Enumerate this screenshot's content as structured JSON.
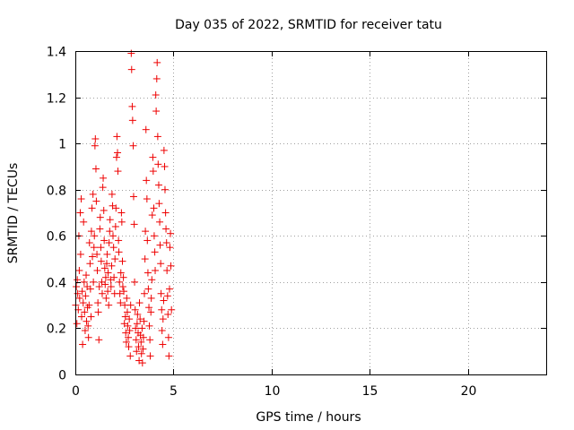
{
  "chart_data": {
    "type": "scatter",
    "title": "Day 035 of 2022, SRMTID for receiver tatu",
    "xlabel": "GPS time / hours",
    "ylabel": "SRMTID / TECUs",
    "xlim": [
      0,
      24
    ],
    "ylim": [
      0,
      1.4
    ],
    "xticks": [
      0,
      5,
      10,
      15,
      20
    ],
    "yticks": [
      0,
      0.2,
      0.4,
      0.6,
      0.8,
      1,
      1.2,
      1.4
    ],
    "xtick_labels": [
      "0",
      "5",
      "10",
      "15",
      "20"
    ],
    "ytick_labels": [
      "0",
      "0.2",
      "0.4",
      "0.6",
      "0.8",
      "1",
      "1.2",
      "1.4"
    ],
    "grid": true,
    "marker": "plus",
    "series": [
      {
        "name": "SRMTID",
        "color": "#ee0000",
        "points": [
          [
            0.02,
            0.3
          ],
          [
            0.05,
            0.38
          ],
          [
            0.08,
            0.22
          ],
          [
            0.1,
            0.41
          ],
          [
            0.12,
            0.35
          ],
          [
            0.15,
            0.28
          ],
          [
            0.18,
            0.6
          ],
          [
            0.2,
            0.45
          ],
          [
            0.22,
            0.33
          ],
          [
            0.25,
            0.7
          ],
          [
            0.27,
            0.52
          ],
          [
            0.3,
            0.76
          ],
          [
            0.32,
            0.25
          ],
          [
            0.35,
            0.36
          ],
          [
            0.37,
            0.13
          ],
          [
            0.4,
            0.31
          ],
          [
            0.42,
            0.66
          ],
          [
            0.45,
            0.4
          ],
          [
            0.47,
            0.27
          ],
          [
            0.5,
            0.19
          ],
          [
            0.52,
            0.34
          ],
          [
            0.55,
            0.43
          ],
          [
            0.57,
            0.23
          ],
          [
            0.6,
            0.38
          ],
          [
            0.62,
            0.29
          ],
          [
            0.65,
            0.21
          ],
          [
            0.67,
            0.16
          ],
          [
            0.7,
            0.3
          ],
          [
            0.72,
            0.57
          ],
          [
            0.75,
            0.48
          ],
          [
            0.77,
            0.37
          ],
          [
            0.8,
            0.25
          ],
          [
            0.82,
            0.62
          ],
          [
            0.85,
            0.72
          ],
          [
            0.87,
            0.51
          ],
          [
            0.9,
            0.78
          ],
          [
            0.92,
            0.4
          ],
          [
            0.95,
            0.55
          ],
          [
            0.97,
            0.6
          ],
          [
            1.0,
            0.99
          ],
          [
            1.02,
            1.02
          ],
          [
            1.05,
            0.89
          ],
          [
            1.07,
            0.75
          ],
          [
            1.1,
            0.52
          ],
          [
            1.12,
            0.45
          ],
          [
            1.15,
            0.31
          ],
          [
            1.17,
            0.27
          ],
          [
            1.2,
            0.15
          ],
          [
            1.22,
            0.38
          ],
          [
            1.25,
            0.63
          ],
          [
            1.27,
            0.68
          ],
          [
            1.3,
            0.55
          ],
          [
            1.32,
            0.49
          ],
          [
            1.35,
            0.4
          ],
          [
            1.37,
            0.35
          ],
          [
            1.4,
            0.81
          ],
          [
            1.42,
            0.85
          ],
          [
            1.45,
            0.71
          ],
          [
            1.47,
            0.58
          ],
          [
            1.5,
            0.46
          ],
          [
            1.52,
            0.39
          ],
          [
            1.55,
            0.42
          ],
          [
            1.57,
            0.33
          ],
          [
            1.6,
            0.48
          ],
          [
            1.62,
            0.52
          ],
          [
            1.65,
            0.36
          ],
          [
            1.67,
            0.44
          ],
          [
            1.7,
            0.3
          ],
          [
            1.72,
            0.57
          ],
          [
            1.75,
            0.62
          ],
          [
            1.77,
            0.67
          ],
          [
            1.8,
            0.41
          ],
          [
            1.82,
            0.38
          ],
          [
            1.85,
            0.47
          ],
          [
            1.87,
            0.78
          ],
          [
            1.9,
            0.73
          ],
          [
            1.92,
            0.6
          ],
          [
            1.95,
            0.55
          ],
          [
            1.97,
            0.42
          ],
          [
            2.0,
            0.35
          ],
          [
            2.02,
            0.5
          ],
          [
            2.05,
            0.64
          ],
          [
            2.07,
            0.72
          ],
          [
            2.1,
            0.94
          ],
          [
            2.12,
            1.03
          ],
          [
            2.15,
            0.96
          ],
          [
            2.17,
            0.88
          ],
          [
            2.2,
            0.58
          ],
          [
            2.22,
            0.53
          ],
          [
            2.25,
            0.4
          ],
          [
            2.27,
            0.35
          ],
          [
            2.3,
            0.31
          ],
          [
            2.32,
            0.44
          ],
          [
            2.35,
            0.7
          ],
          [
            2.37,
            0.66
          ],
          [
            2.4,
            0.49
          ],
          [
            2.42,
            0.38
          ],
          [
            2.45,
            0.42
          ],
          [
            2.47,
            0.36
          ],
          [
            2.5,
            0.22
          ],
          [
            2.52,
            0.3
          ],
          [
            2.55,
            0.25
          ],
          [
            2.57,
            0.18
          ],
          [
            2.6,
            0.14
          ],
          [
            2.62,
            0.33
          ],
          [
            2.65,
            0.27
          ],
          [
            2.67,
            0.21
          ],
          [
            2.7,
            0.16
          ],
          [
            2.72,
            0.12
          ],
          [
            2.75,
            0.24
          ],
          [
            2.77,
            0.19
          ],
          [
            2.8,
            0.08
          ],
          [
            2.82,
            0.3
          ],
          [
            2.85,
            1.39
          ],
          [
            2.87,
            1.32
          ],
          [
            2.9,
            1.16
          ],
          [
            2.92,
            1.1
          ],
          [
            2.95,
            0.99
          ],
          [
            2.97,
            0.77
          ],
          [
            3.0,
            0.65
          ],
          [
            3.02,
            0.4
          ],
          [
            3.05,
            0.28
          ],
          [
            3.07,
            0.2
          ],
          [
            3.1,
            0.15
          ],
          [
            3.12,
            0.1
          ],
          [
            3.15,
            0.22
          ],
          [
            3.17,
            0.26
          ],
          [
            3.2,
            0.18
          ],
          [
            3.22,
            0.12
          ],
          [
            3.25,
            0.06
          ],
          [
            3.27,
            0.31
          ],
          [
            3.3,
            0.24
          ],
          [
            3.32,
            0.17
          ],
          [
            3.35,
            0.14
          ],
          [
            3.37,
            0.09
          ],
          [
            3.4,
            0.2
          ],
          [
            3.42,
            0.05
          ],
          [
            3.45,
            0.11
          ],
          [
            3.47,
            0.16
          ],
          [
            3.5,
            0.23
          ],
          [
            3.52,
            0.35
          ],
          [
            3.55,
            0.5
          ],
          [
            3.57,
            0.62
          ],
          [
            3.6,
            1.06
          ],
          [
            3.62,
            0.84
          ],
          [
            3.65,
            0.76
          ],
          [
            3.67,
            0.58
          ],
          [
            3.7,
            0.44
          ],
          [
            3.72,
            0.37
          ],
          [
            3.75,
            0.29
          ],
          [
            3.77,
            0.21
          ],
          [
            3.8,
            0.15
          ],
          [
            3.82,
            0.08
          ],
          [
            3.85,
            0.27
          ],
          [
            3.87,
            0.33
          ],
          [
            3.9,
            0.41
          ],
          [
            3.92,
            0.69
          ],
          [
            3.95,
            0.94
          ],
          [
            3.97,
            0.88
          ],
          [
            4.0,
            0.72
          ],
          [
            4.02,
            0.6
          ],
          [
            4.05,
            0.53
          ],
          [
            4.07,
            0.45
          ],
          [
            4.1,
            1.21
          ],
          [
            4.12,
            1.14
          ],
          [
            4.15,
            1.28
          ],
          [
            4.17,
            1.35
          ],
          [
            4.2,
            1.03
          ],
          [
            4.22,
            0.91
          ],
          [
            4.25,
            0.82
          ],
          [
            4.27,
            0.74
          ],
          [
            4.3,
            0.66
          ],
          [
            4.32,
            0.56
          ],
          [
            4.35,
            0.48
          ],
          [
            4.37,
            0.35
          ],
          [
            4.4,
            0.28
          ],
          [
            4.42,
            0.19
          ],
          [
            4.45,
            0.13
          ],
          [
            4.47,
            0.24
          ],
          [
            4.5,
            0.32
          ],
          [
            4.52,
            0.97
          ],
          [
            4.55,
            0.9
          ],
          [
            4.57,
            0.8
          ],
          [
            4.6,
            0.7
          ],
          [
            4.62,
            0.63
          ],
          [
            4.65,
            0.57
          ],
          [
            4.67,
            0.45
          ],
          [
            4.7,
            0.34
          ],
          [
            4.72,
            0.26
          ],
          [
            4.75,
            0.16
          ],
          [
            4.77,
            0.08
          ],
          [
            4.8,
            0.37
          ],
          [
            4.82,
            0.55
          ],
          [
            4.85,
            0.61
          ],
          [
            4.87,
            0.47
          ],
          [
            4.9,
            0.28
          ]
        ]
      }
    ]
  }
}
